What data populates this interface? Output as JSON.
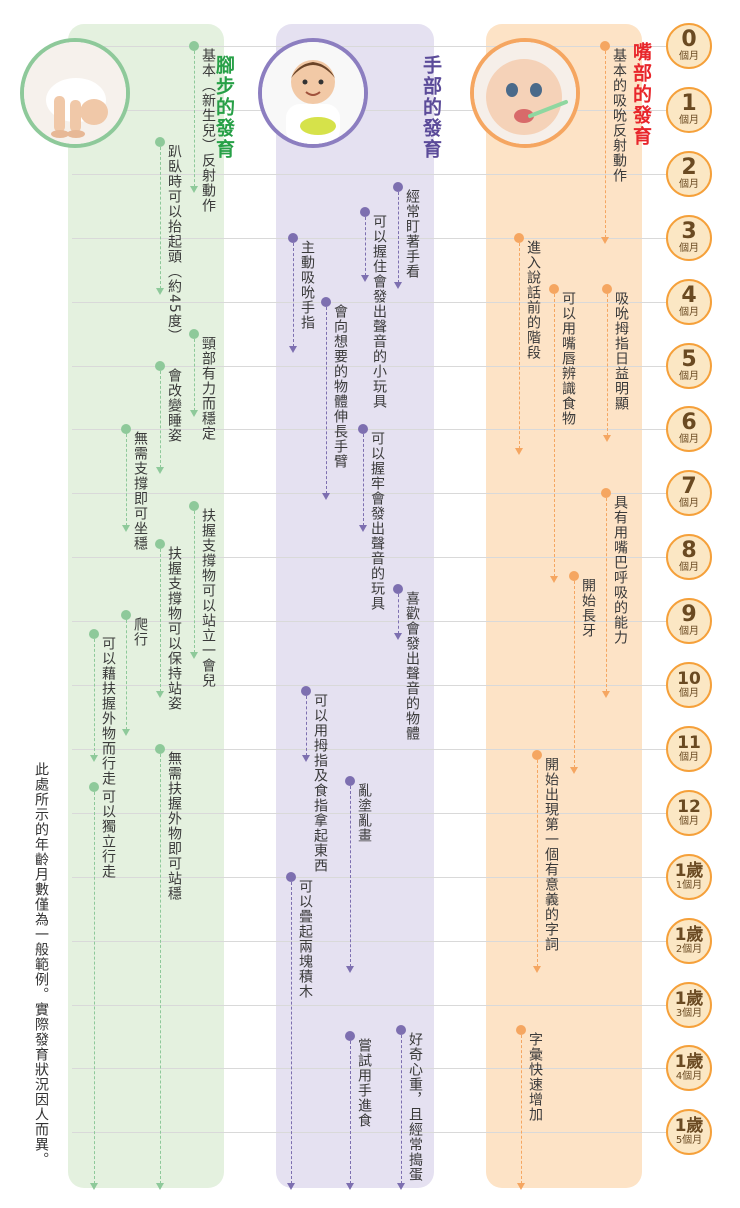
{
  "months": [
    {
      "n": "0",
      "u": "個月"
    },
    {
      "n": "1",
      "u": "個月"
    },
    {
      "n": "2",
      "u": "個月"
    },
    {
      "n": "3",
      "u": "個月"
    },
    {
      "n": "4",
      "u": "個月"
    },
    {
      "n": "5",
      "u": "個月"
    },
    {
      "n": "6",
      "u": "個月"
    },
    {
      "n": "7",
      "u": "個月"
    },
    {
      "n": "8",
      "u": "個月"
    },
    {
      "n": "9",
      "u": "個月"
    },
    {
      "n": "10",
      "u": "個月"
    },
    {
      "n": "11",
      "u": "個月"
    },
    {
      "n": "12",
      "u": "個月"
    },
    {
      "n": "1歲",
      "u": "1個月"
    },
    {
      "n": "1歲",
      "u": "2個月"
    },
    {
      "n": "1歲",
      "u": "3個月"
    },
    {
      "n": "1歲",
      "u": "4個月"
    },
    {
      "n": "1歲",
      "u": "5個月"
    }
  ],
  "colors": {
    "leg": "#8ec99a",
    "leg_bg": "#e4f1df",
    "leg_title": "#27a047",
    "hand": "#7d6fb0",
    "hand_bg": "#e5e1f1",
    "hand_title": "#5b4b99",
    "mouth": "#f5a661",
    "mouth_bg": "#fde3c6",
    "mouth_title": "#e8262b"
  },
  "columns": {
    "leg": {
      "title": "腳步的發育"
    },
    "hand": {
      "title": "手部的發育"
    },
    "mouth": {
      "title": "嘴部的發育"
    }
  },
  "milestones": [
    {
      "col": "leg",
      "text": "基本（新生兒）反射動作",
      "start": 0,
      "end": 2.3
    },
    {
      "col": "leg",
      "text": "趴臥時可以抬起頭（約45度）",
      "start": 1.5,
      "end": 3.9
    },
    {
      "col": "leg",
      "text": "頸部有力而穩定",
      "start": 4.5,
      "end": 5.8
    },
    {
      "col": "leg",
      "text": "會改變睡姿",
      "start": 5,
      "end": 6.7
    },
    {
      "col": "leg",
      "text": "無需支撐即可坐穩",
      "start": 6,
      "end": 7.6
    },
    {
      "col": "leg",
      "text": "扶握支撐物可以站立一會兒",
      "start": 7.2,
      "end": 9.6
    },
    {
      "col": "leg",
      "text": "扶握支撐物可以保持站姿",
      "start": 7.8,
      "end": 10.2
    },
    {
      "col": "leg",
      "text": "爬行",
      "start": 8.9,
      "end": 10.8
    },
    {
      "col": "leg",
      "text": "可以藉扶握外物而行走",
      "start": 9.2,
      "end": 11.2
    },
    {
      "col": "leg",
      "text": "無需扶握外物即可站穩",
      "start": 11,
      "end": 17.9
    },
    {
      "col": "leg",
      "text": "可以獨立行走",
      "start": 11.6,
      "end": 17.9
    },
    {
      "col": "hand",
      "text": "經常盯著手看",
      "start": 2.2,
      "end": 3.8
    },
    {
      "col": "hand",
      "text": "可以握住會發出聲音的小玩具",
      "start": 2.6,
      "end": 3.7
    },
    {
      "col": "hand",
      "text": "主動吸吮手指",
      "start": 3,
      "end": 4.8
    },
    {
      "col": "hand",
      "text": "會向想要的物體伸長手臂",
      "start": 4,
      "end": 7.1
    },
    {
      "col": "hand",
      "text": "可以握牢會發出聲音的玩具",
      "start": 6,
      "end": 7.6
    },
    {
      "col": "hand",
      "text": "喜歡會發出聲音的物體",
      "start": 8.5,
      "end": 9.3
    },
    {
      "col": "hand",
      "text": "可以用拇指及食指拿起東西",
      "start": 10.1,
      "end": 11.2
    },
    {
      "col": "hand",
      "text": "亂塗亂畫",
      "start": 11.5,
      "end": 14.5
    },
    {
      "col": "hand",
      "text": "可以疊起兩塊積木",
      "start": 13,
      "end": 17.9
    },
    {
      "col": "hand",
      "text": "好奇心重，且經常搗蛋",
      "start": 15.4,
      "end": 17.9
    },
    {
      "col": "hand",
      "text": "嘗試用手進食",
      "start": 15.5,
      "end": 17.9
    },
    {
      "col": "mouth",
      "text": "基本的吸吮反射動作",
      "start": 0,
      "end": 3.1
    },
    {
      "col": "mouth",
      "text": "進入說話前的階段",
      "start": 3,
      "end": 6.4
    },
    {
      "col": "mouth",
      "text": "可以用嘴唇辨識食物",
      "start": 3.8,
      "end": 8.4
    },
    {
      "col": "mouth",
      "text": "吸吮拇指日益明顯",
      "start": 3.8,
      "end": 6.2
    },
    {
      "col": "mouth",
      "text": "具有用嘴巴呼吸的能力",
      "start": 7,
      "end": 10.2
    },
    {
      "col": "mouth",
      "text": "開始長牙",
      "start": 8.3,
      "end": 11.4
    },
    {
      "col": "mouth",
      "text": "開始出現第一個有意義的字詞",
      "start": 11.1,
      "end": 14.5
    },
    {
      "col": "mouth",
      "text": "字彙快速增加",
      "start": 15.4,
      "end": 17.9
    }
  ],
  "note": "此處所示的年齡月數僅為一般範例。實際發育狀況因人而異。"
}
